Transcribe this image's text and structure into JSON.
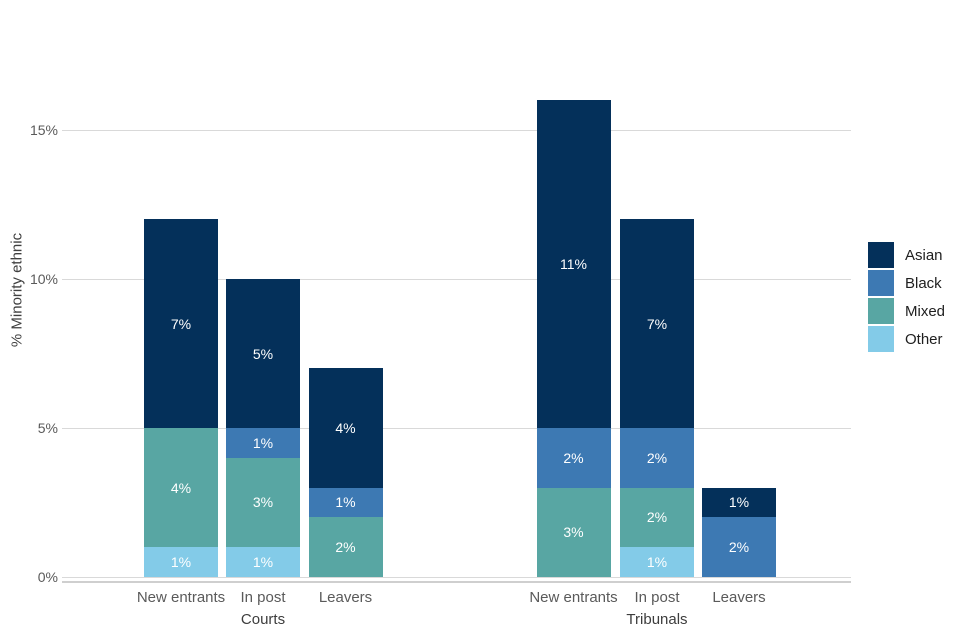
{
  "chart_data": {
    "type": "bar",
    "variant": "stacked",
    "title": "",
    "ylabel": "% Minority ethnic",
    "xlabel": "",
    "unit": "%",
    "ylim": [
      0,
      16.75
    ],
    "grid": true,
    "gridline_color": "#d9d9d9",
    "yticks": [
      {
        "value": 0,
        "label": "0%"
      },
      {
        "value": 5,
        "label": "5%"
      },
      {
        "value": 10,
        "label": "10%"
      },
      {
        "value": 15,
        "label": "15%"
      }
    ],
    "colors": {
      "Asian": "#04305a",
      "Black": "#3d79b3",
      "Mixed": "#58a6a3",
      "Other": "#83cbe8"
    },
    "legend": {
      "position": "right",
      "entries": [
        {
          "name": "Asian",
          "color": "#04305a"
        },
        {
          "name": "Black",
          "color": "#3d79b3"
        },
        {
          "name": "Mixed",
          "color": "#58a6a3"
        },
        {
          "name": "Other",
          "color": "#83cbe8"
        }
      ]
    },
    "stack_order_bottom_to_top": [
      "Other",
      "Mixed",
      "Black",
      "Asian"
    ],
    "groups": [
      {
        "label": "Courts",
        "bars": [
          {
            "category": "New entrants",
            "total": 12,
            "segments": [
              {
                "series": "Other",
                "value": 1,
                "label": "1%"
              },
              {
                "series": "Mixed",
                "value": 4,
                "label": "4%"
              },
              {
                "series": "Asian",
                "value": 7,
                "label": "7%"
              }
            ]
          },
          {
            "category": "In post",
            "total": 10,
            "segments": [
              {
                "series": "Other",
                "value": 1,
                "label": "1%"
              },
              {
                "series": "Mixed",
                "value": 3,
                "label": "3%"
              },
              {
                "series": "Black",
                "value": 1,
                "label": "1%"
              },
              {
                "series": "Asian",
                "value": 5,
                "label": "5%"
              }
            ]
          },
          {
            "category": "Leavers",
            "total": 7,
            "segments": [
              {
                "series": "Mixed",
                "value": 2,
                "label": "2%"
              },
              {
                "series": "Black",
                "value": 1,
                "label": "1%"
              },
              {
                "series": "Asian",
                "value": 4,
                "label": "4%"
              }
            ]
          }
        ]
      },
      {
        "label": "Tribunals",
        "bars": [
          {
            "category": "New entrants",
            "total": 16,
            "segments": [
              {
                "series": "Mixed",
                "value": 3,
                "label": "3%"
              },
              {
                "series": "Black",
                "value": 2,
                "label": "2%"
              },
              {
                "series": "Asian",
                "value": 11,
                "label": "11%"
              }
            ]
          },
          {
            "category": "In post",
            "total": 12,
            "segments": [
              {
                "series": "Other",
                "value": 1,
                "label": "1%"
              },
              {
                "series": "Mixed",
                "value": 2,
                "label": "2%"
              },
              {
                "series": "Black",
                "value": 2,
                "label": "2%"
              },
              {
                "series": "Asian",
                "value": 7,
                "label": "7%"
              }
            ]
          },
          {
            "category": "Leavers",
            "total": 3,
            "segments": [
              {
                "series": "Black",
                "value": 2,
                "label": "2%"
              },
              {
                "series": "Asian",
                "value": 1,
                "label": "1%"
              }
            ]
          }
        ]
      }
    ]
  }
}
